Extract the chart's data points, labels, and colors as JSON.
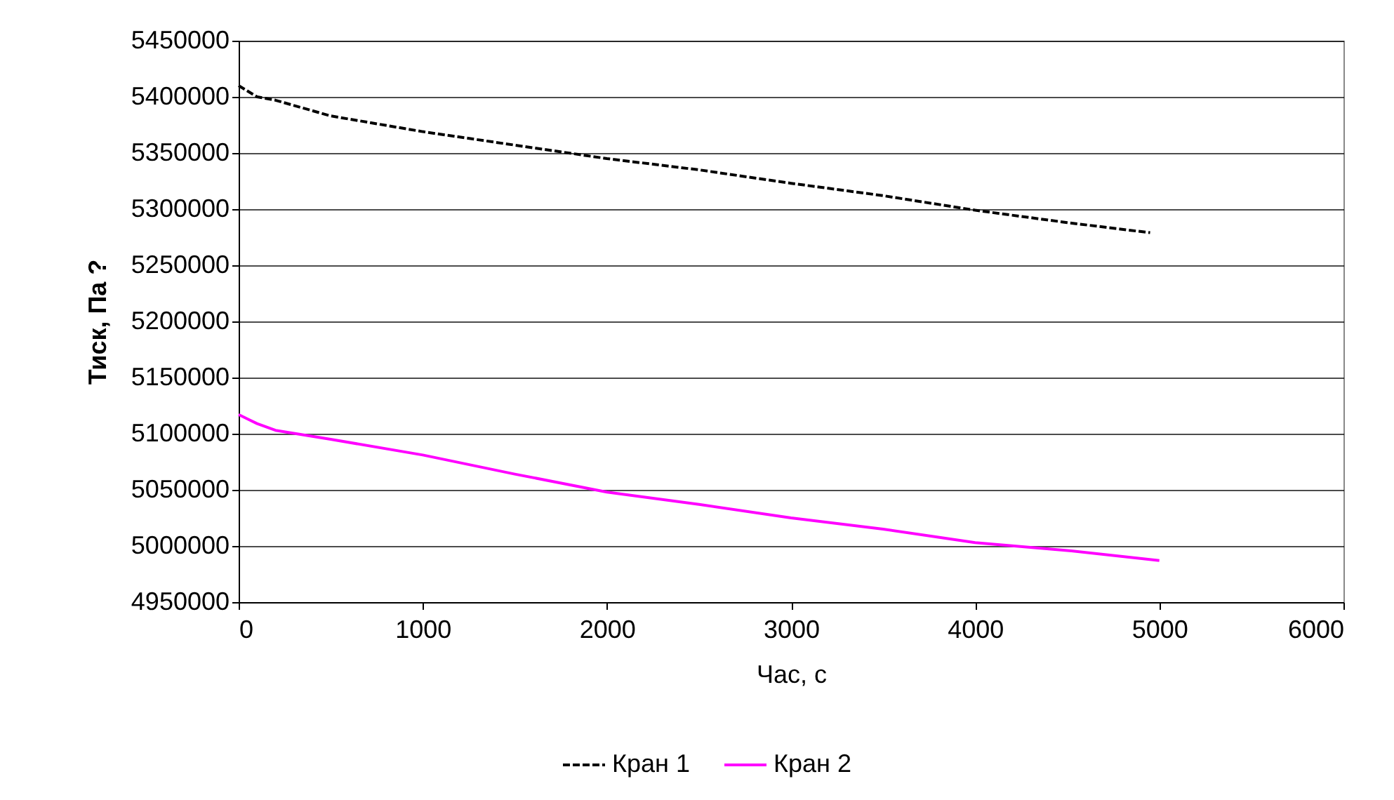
{
  "chart_data": {
    "type": "line",
    "xlabel": "Час, с",
    "ylabel": "Тиск, Па ?",
    "xlim": [
      0,
      6000
    ],
    "xticks": [
      0,
      1000,
      2000,
      3000,
      4000,
      5000,
      6000
    ],
    "ylim": [
      4950000,
      5450000
    ],
    "yticks": [
      4950000,
      5000000,
      5050000,
      5100000,
      5150000,
      5200000,
      5250000,
      5300000,
      5350000,
      5400000,
      5450000
    ],
    "grid": "y",
    "legend": "bottom",
    "marker": "none",
    "series": [
      {
        "name": "Кран 1",
        "color": "#000000",
        "line_style": "dashed",
        "x": [
          0,
          100,
          200,
          500,
          1000,
          1500,
          2000,
          2500,
          3000,
          3500,
          4000,
          4500,
          4950
        ],
        "values": [
          5410000,
          5400000,
          5397000,
          5383000,
          5369000,
          5357000,
          5345000,
          5335000,
          5323000,
          5312000,
          5299000,
          5288000,
          5279000
        ]
      },
      {
        "name": "Кран 2",
        "color": "#ff00ff",
        "line_style": "solid",
        "x": [
          0,
          50,
          100,
          200,
          500,
          1000,
          1500,
          2000,
          2500,
          3000,
          3500,
          4000,
          4500,
          5000
        ],
        "values": [
          5117000,
          5113000,
          5109000,
          5103000,
          5095000,
          5081000,
          5064000,
          5048000,
          5037000,
          5025000,
          5015000,
          5003000,
          4996000,
          4987000
        ]
      }
    ]
  }
}
